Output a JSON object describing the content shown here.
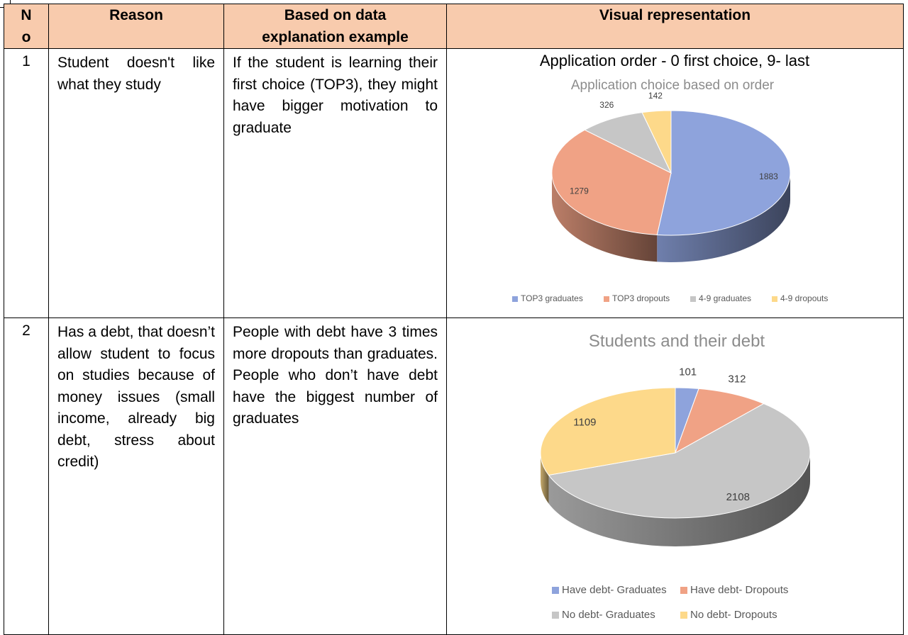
{
  "table": {
    "headers": {
      "no": [
        "N",
        "o"
      ],
      "reason": "Reason",
      "explanation": [
        "Based on data",
        "explanation example"
      ],
      "visual": "Visual representation"
    },
    "rows": [
      {
        "no": "1",
        "reason": "Student doesn't like what they study",
        "explanation": "If the student is learning their first choice (TOP3), they might have bigger motivation to graduate",
        "visual_caption": "Application order - 0 first choice, 9- last"
      },
      {
        "no": "2",
        "reason": "Has a debt, that doesn’t allow student to focus on studies because of money issues (small income, already big debt, stress about credit)",
        "explanation": "People with debt have 3 times more dropouts than graduates. People who don’t have debt have the biggest number of graduates",
        "visual_caption": ""
      }
    ]
  },
  "chart_data": [
    {
      "type": "pie",
      "title": "Application choice based on order",
      "style": "3d",
      "legend_position": "bottom",
      "categories": [
        "TOP3 graduates",
        "TOP3 dropouts",
        "4-9 graduates",
        "4-9 dropouts"
      ],
      "values": [
        1883,
        1279,
        326,
        142
      ],
      "colors": [
        "#8ea3dc",
        "#f0a285",
        "#c6c6c6",
        "#fdd98a"
      ]
    },
    {
      "type": "pie",
      "title": "Students and their debt",
      "style": "3d",
      "legend_position": "bottom",
      "categories": [
        "Have debt- Graduates",
        "Have debt- Dropouts",
        "No debt- Graduates",
        "No debt- Dropouts"
      ],
      "values": [
        101,
        312,
        2108,
        1109
      ],
      "colors": [
        "#8ea3dc",
        "#f0a285",
        "#c6c6c6",
        "#fdd98a"
      ]
    }
  ]
}
